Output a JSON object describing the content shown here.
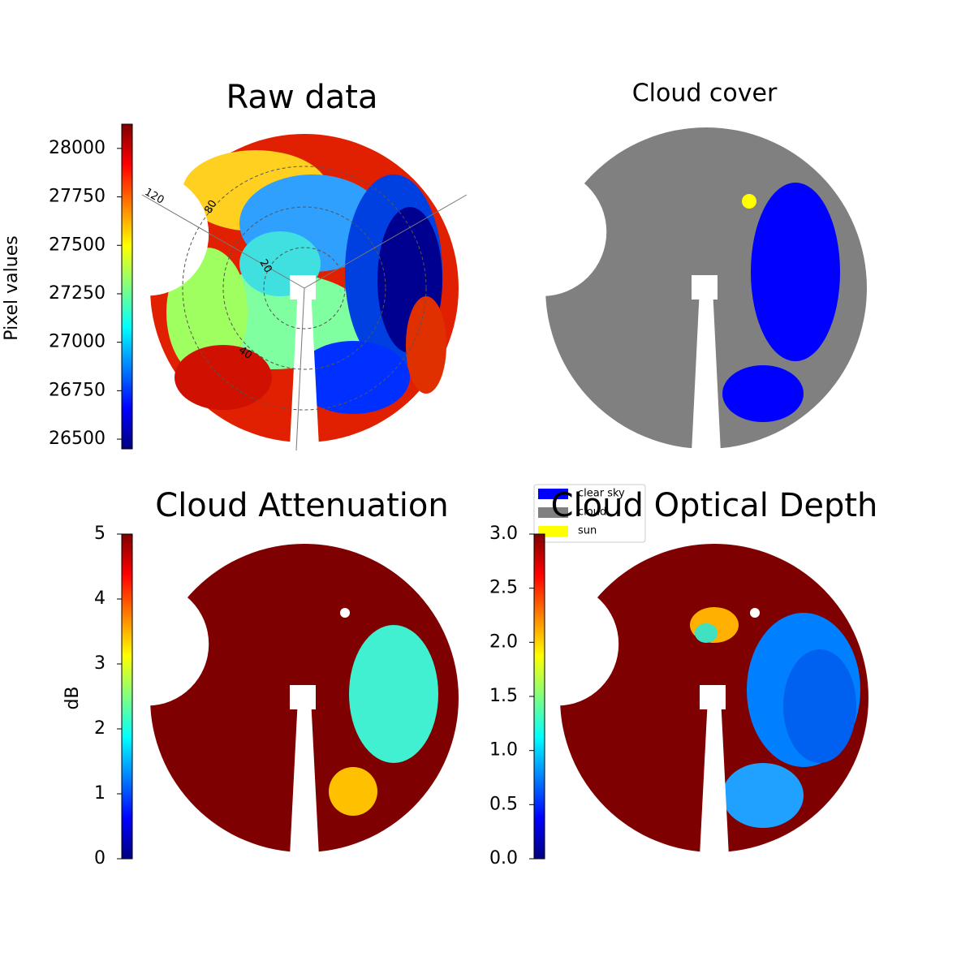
{
  "chart_data": [
    {
      "type": "image",
      "title": "Raw data",
      "ylabel": "Pixel values",
      "ylim": [
        26450,
        28125
      ],
      "yticks": [
        26500,
        26750,
        27000,
        27250,
        27500,
        27750,
        28000
      ],
      "polar_labels": [
        "120",
        "80",
        "20",
        "40"
      ]
    },
    {
      "type": "image",
      "title": "Cloud cover",
      "legend": [
        {
          "name": "clear sky",
          "color": "#0000ff"
        },
        {
          "name": "cloud",
          "color": "#808080"
        },
        {
          "name": "sun",
          "color": "#ffff00"
        }
      ]
    },
    {
      "type": "image",
      "title": "Cloud Attenuation",
      "ylabel": "dB",
      "ylim": [
        0,
        5
      ],
      "yticks": [
        0,
        1,
        2,
        3,
        4,
        5
      ]
    },
    {
      "type": "image",
      "title": "Cloud Optical Depth",
      "ylim": [
        0,
        3
      ],
      "yticks": [
        {
          "value": 0,
          "label": "0.0"
        },
        {
          "value": 0.5,
          "label": "0.5"
        },
        {
          "value": 1,
          "label": "1.0"
        },
        {
          "value": 1.5,
          "label": "1.5"
        },
        {
          "value": 2,
          "label": "2.0"
        },
        {
          "value": 2.5,
          "label": "2.5"
        },
        {
          "value": 3,
          "label": "3.0"
        }
      ]
    }
  ]
}
